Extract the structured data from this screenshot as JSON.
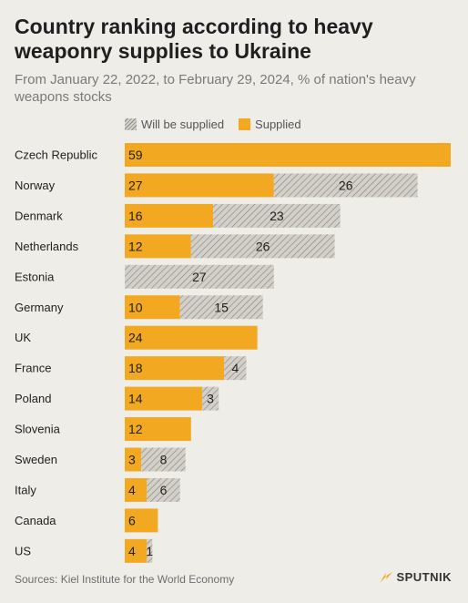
{
  "header": {
    "title": "Country ranking according to heavy weaponry supplies to Ukraine",
    "subtitle": "From January 22, 2022, to February 29, 2024, % of nation's heavy weapons stocks"
  },
  "legend": {
    "planned_label": "Will be supplied",
    "supplied_label": "Supplied"
  },
  "colors": {
    "supplied": "#f2a921",
    "planned_fill": "#d3d0c9",
    "planned_hatch": "#8f8b84",
    "background": "#efede8",
    "brand_accent": "#f2a921"
  },
  "chart_data": {
    "type": "bar",
    "orientation": "horizontal",
    "stacked": true,
    "categories": [
      "Czech Republic",
      "Norway",
      "Denmark",
      "Netherlands",
      "Estonia",
      "Germany",
      "UK",
      "France",
      "Poland",
      "Slovenia",
      "Sweden",
      "Italy",
      "Canada",
      "US"
    ],
    "series": [
      {
        "name": "Supplied",
        "values": [
          59,
          27,
          16,
          12,
          0,
          10,
          24,
          18,
          14,
          12,
          3,
          4,
          6,
          4
        ]
      },
      {
        "name": "Will be supplied",
        "values": [
          0,
          26,
          23,
          26,
          27,
          15,
          0,
          4,
          3,
          0,
          8,
          6,
          0,
          1
        ]
      }
    ],
    "xlim": [
      0,
      59
    ],
    "grid": false,
    "legend_position": "top"
  },
  "footer": {
    "sources": "Sources: Kiel Institute for the World Economy",
    "brand": "SPUTNIK"
  }
}
